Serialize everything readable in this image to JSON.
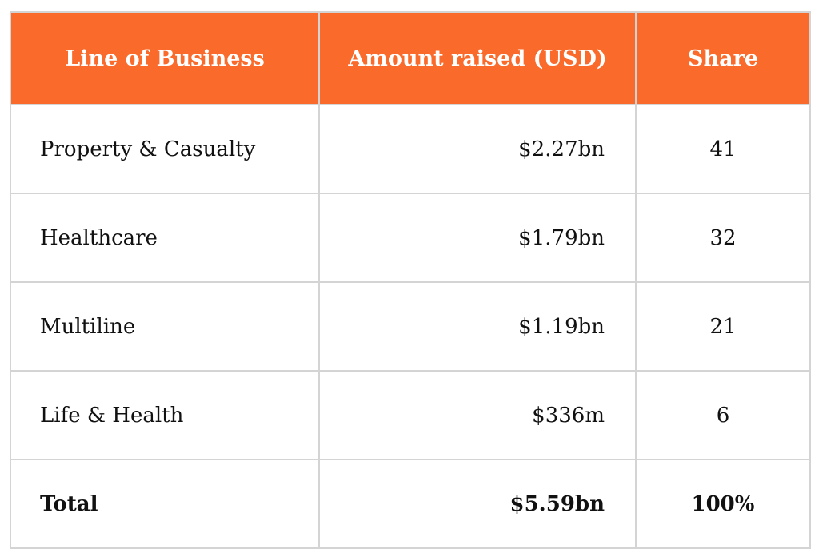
{
  "table": {
    "headers": [
      "Line of Business",
      "Amount raised (USD)",
      "Share"
    ],
    "rows": [
      {
        "business": "Property & Casualty",
        "amount": "$2.27bn",
        "share": "41"
      },
      {
        "business": "Healthcare",
        "amount": "$1.79bn",
        "share": "32"
      },
      {
        "business": "Multiline",
        "amount": "$1.19bn",
        "share": "21"
      },
      {
        "business": "Life & Health",
        "amount": "$336m",
        "share": "6"
      }
    ],
    "total": {
      "business": "Total",
      "amount": "$5.59bn",
      "share": "100%"
    }
  },
  "colors": {
    "header_background": "#f96a2b",
    "header_text": "#ffffff",
    "border": "#d4d4d4"
  }
}
